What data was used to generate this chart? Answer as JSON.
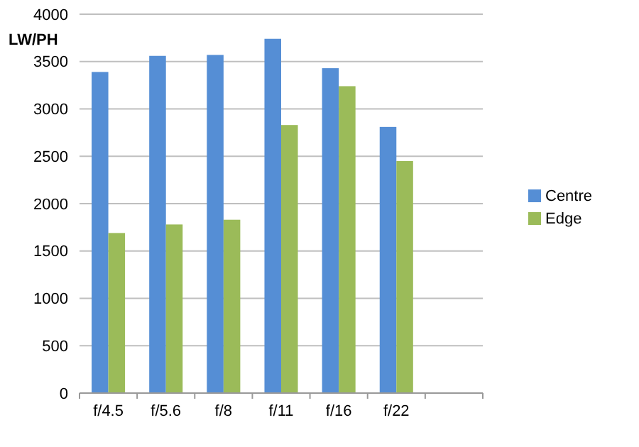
{
  "chart_data": {
    "type": "bar",
    "ylabel": "LW/PH",
    "categories": [
      "f/4.5",
      "f/5.6",
      "f/8",
      "f/11",
      "f/16",
      "f/22",
      null
    ],
    "series": [
      {
        "name": "Centre",
        "color": "#558ed5",
        "values": [
          3390,
          3560,
          3570,
          3740,
          3430,
          2810,
          null
        ]
      },
      {
        "name": "Edge",
        "color": "#9bbb59",
        "values": [
          1690,
          1780,
          1830,
          2830,
          3240,
          2450,
          null
        ]
      }
    ],
    "ylim": [
      0,
      4000
    ],
    "yticks": [
      0,
      500,
      1000,
      1500,
      2000,
      2500,
      3000,
      3500,
      4000
    ],
    "grid": "y",
    "legend": "right"
  }
}
